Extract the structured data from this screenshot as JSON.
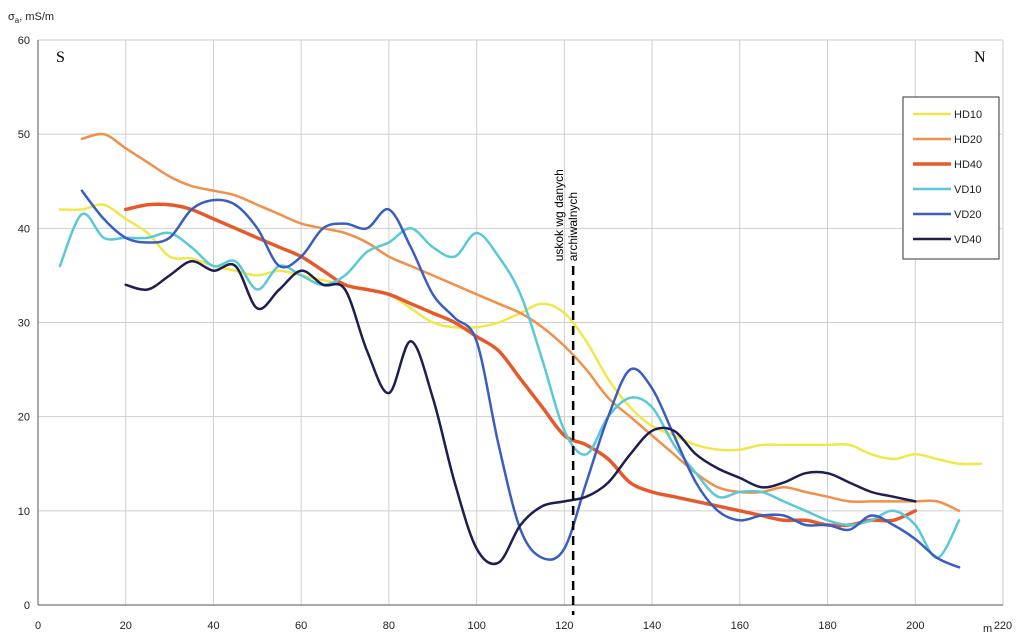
{
  "chart_data": {
    "type": "line",
    "title": "",
    "ylabel_main": "σ",
    "ylabel_sub": "a",
    "ylabel_unit": ", mS/m",
    "xlabel": "m",
    "xlim": [
      0,
      220
    ],
    "ylim": [
      0,
      60
    ],
    "xticks": [
      0,
      20,
      40,
      60,
      80,
      100,
      120,
      140,
      160,
      180,
      200,
      220
    ],
    "yticks": [
      0,
      10,
      20,
      30,
      40,
      50,
      60
    ],
    "grid": true,
    "legend_position": "right",
    "direction_left": "S",
    "direction_right": "N",
    "fault_annotation": {
      "x": 122,
      "line1": "uskok wg danych",
      "line2": "archiwalnych"
    },
    "series": [
      {
        "name": "HD10",
        "color": "#f0e84a",
        "width": 2.5,
        "x": [
          5,
          10,
          15,
          20,
          25,
          30,
          35,
          40,
          45,
          50,
          55,
          60,
          65,
          70,
          75,
          80,
          85,
          90,
          95,
          100,
          105,
          110,
          115,
          120,
          125,
          130,
          135,
          140,
          145,
          150,
          155,
          160,
          165,
          170,
          175,
          180,
          185,
          190,
          195,
          200,
          205,
          210,
          215
        ],
        "y": [
          42,
          42,
          42.5,
          41,
          39.5,
          37,
          36.8,
          36,
          35.5,
          35,
          35.5,
          35,
          34.5,
          34,
          33.5,
          33,
          31.5,
          30,
          29.5,
          29.5,
          30,
          31,
          32,
          31,
          28,
          24,
          21,
          19,
          18,
          17,
          16.5,
          16.5,
          17,
          17,
          17,
          17,
          17,
          16,
          15.5,
          16,
          15.5,
          15,
          15
        ]
      },
      {
        "name": "HD20",
        "color": "#f0904a",
        "width": 2.5,
        "x": [
          10,
          15,
          20,
          25,
          30,
          35,
          40,
          45,
          50,
          55,
          60,
          65,
          70,
          75,
          80,
          85,
          90,
          95,
          100,
          105,
          110,
          115,
          120,
          125,
          130,
          135,
          140,
          145,
          150,
          155,
          160,
          165,
          170,
          175,
          180,
          185,
          190,
          195,
          200,
          205,
          210
        ],
        "y": [
          49.5,
          50,
          48.5,
          47,
          45.5,
          44.5,
          44,
          43.5,
          42.5,
          41.5,
          40.5,
          40,
          39.5,
          38.5,
          37,
          36,
          35,
          34,
          33,
          32,
          31,
          29.5,
          27.5,
          25,
          22,
          20,
          18,
          16,
          14,
          12.5,
          12,
          12,
          12.5,
          12,
          11.5,
          11,
          11,
          11,
          11,
          11,
          10
        ]
      },
      {
        "name": "HD40",
        "color": "#e55a2a",
        "width": 3.5,
        "x": [
          20,
          25,
          30,
          35,
          40,
          45,
          50,
          55,
          60,
          65,
          70,
          75,
          80,
          85,
          90,
          95,
          100,
          105,
          110,
          115,
          120,
          125,
          130,
          135,
          140,
          145,
          150,
          155,
          160,
          165,
          170,
          175,
          180,
          185,
          190,
          195,
          200
        ],
        "y": [
          42,
          42.5,
          42.5,
          42,
          41,
          40,
          39,
          38,
          37,
          35.5,
          34,
          33.5,
          33,
          32,
          31,
          30,
          28.5,
          27,
          24,
          21,
          18,
          17,
          15.5,
          13,
          12,
          11.5,
          11,
          10.5,
          10,
          9.5,
          9,
          9,
          8.5,
          8.5,
          9,
          9,
          10
        ]
      },
      {
        "name": "VD10",
        "color": "#5ac8d8",
        "width": 2.5,
        "x": [
          5,
          10,
          15,
          20,
          25,
          30,
          35,
          40,
          45,
          50,
          55,
          60,
          65,
          70,
          75,
          80,
          85,
          90,
          95,
          100,
          105,
          110,
          115,
          120,
          125,
          130,
          135,
          140,
          145,
          150,
          155,
          160,
          165,
          170,
          175,
          180,
          185,
          190,
          195,
          200,
          205,
          210
        ],
        "y": [
          36,
          41.5,
          39,
          39,
          39,
          39.5,
          38,
          36,
          36.5,
          33.5,
          36,
          35,
          34,
          35,
          37.5,
          38.5,
          40,
          38,
          37,
          39.5,
          37,
          33,
          26,
          18.5,
          16,
          20,
          22,
          21,
          17,
          14,
          11.5,
          12,
          12,
          11,
          10,
          9,
          8.5,
          9,
          10,
          8.5,
          5,
          9
        ]
      },
      {
        "name": "VD20",
        "color": "#3a5ec0",
        "width": 2.5,
        "x": [
          10,
          15,
          20,
          25,
          30,
          35,
          40,
          45,
          50,
          55,
          60,
          65,
          70,
          75,
          80,
          85,
          90,
          95,
          100,
          105,
          110,
          115,
          120,
          125,
          130,
          135,
          140,
          145,
          150,
          155,
          160,
          165,
          170,
          175,
          180,
          185,
          190,
          195,
          200,
          205,
          210
        ],
        "y": [
          44,
          41,
          39,
          38.5,
          39,
          42,
          43,
          42.5,
          40,
          36,
          37,
          40,
          40.5,
          40,
          42,
          38,
          33,
          30.5,
          28,
          17,
          8,
          5,
          6,
          13,
          20,
          25,
          23,
          18,
          13,
          10,
          9,
          9.5,
          9.5,
          8.5,
          8.5,
          8,
          9.5,
          8.5,
          7,
          5,
          4
        ]
      },
      {
        "name": "VD40",
        "color": "#1e1e50",
        "width": 2.5,
        "x": [
          20,
          25,
          30,
          35,
          40,
          45,
          50,
          55,
          60,
          65,
          70,
          75,
          80,
          85,
          90,
          95,
          100,
          105,
          110,
          115,
          120,
          125,
          130,
          135,
          140,
          145,
          150,
          155,
          160,
          165,
          170,
          175,
          180,
          185,
          190,
          195,
          200
        ],
        "y": [
          34,
          33.5,
          35,
          36.5,
          35.5,
          36,
          31.5,
          33.5,
          35.5,
          34,
          33.5,
          27,
          22.5,
          28,
          22,
          13,
          6,
          4.5,
          8.5,
          10.5,
          11,
          11.5,
          13,
          16,
          18.5,
          18.5,
          16,
          14.5,
          13.5,
          12.5,
          13,
          14,
          14,
          13,
          12,
          11.5,
          11
        ]
      }
    ]
  }
}
